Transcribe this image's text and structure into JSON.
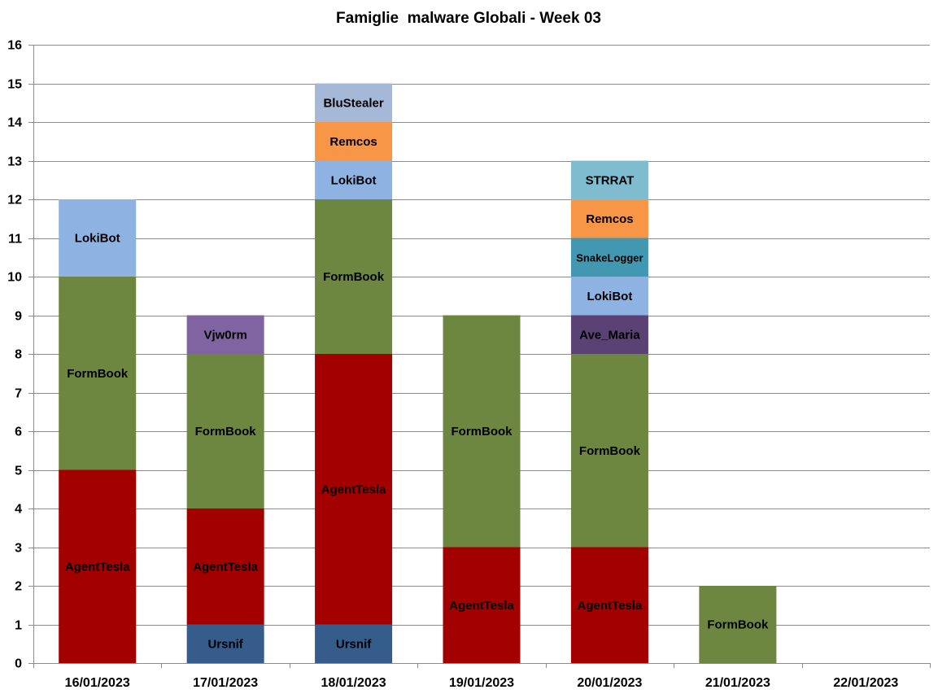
{
  "chart_data": {
    "type": "bar",
    "stacked": true,
    "title": "Famiglie  malware Globali - Week 03",
    "xlabel": "",
    "ylabel": "",
    "ylim": [
      0,
      16
    ],
    "yticks": [
      0,
      1,
      2,
      3,
      4,
      5,
      6,
      7,
      8,
      9,
      10,
      11,
      12,
      13,
      14,
      15,
      16
    ],
    "grid": true,
    "legend": "none",
    "categories": [
      "16/01/2023",
      "17/01/2023",
      "18/01/2023",
      "19/01/2023",
      "20/01/2023",
      "21/01/2023",
      "22/01/2023"
    ],
    "colors": {
      "Ursnif": "#355c8a",
      "AgentTesla": "#a30000",
      "FormBook": "#6e8740",
      "Vjw0rm": "#8064a2",
      "Ave_Maria": "#5a4274",
      "LokiBot": "#8eb3e2",
      "SnakeLogger": "#4198b0",
      "Remcos": "#f79646",
      "BluStealer": "#a6b8d8",
      "STRRAT": "#7fbccf"
    },
    "bars": [
      {
        "category": "16/01/2023",
        "segments": [
          {
            "name": "AgentTesla",
            "value": 5
          },
          {
            "name": "FormBook",
            "value": 5
          },
          {
            "name": "LokiBot",
            "value": 2
          }
        ]
      },
      {
        "category": "17/01/2023",
        "segments": [
          {
            "name": "Ursnif",
            "value": 1
          },
          {
            "name": "AgentTesla",
            "value": 3
          },
          {
            "name": "FormBook",
            "value": 4
          },
          {
            "name": "Vjw0rm",
            "value": 1
          }
        ]
      },
      {
        "category": "18/01/2023",
        "segments": [
          {
            "name": "Ursnif",
            "value": 1
          },
          {
            "name": "AgentTesla",
            "value": 7
          },
          {
            "name": "FormBook",
            "value": 4
          },
          {
            "name": "LokiBot",
            "value": 1
          },
          {
            "name": "Remcos",
            "value": 1
          },
          {
            "name": "BluStealer",
            "value": 1
          }
        ]
      },
      {
        "category": "19/01/2023",
        "segments": [
          {
            "name": "AgentTesla",
            "value": 3
          },
          {
            "name": "FormBook",
            "value": 6
          }
        ]
      },
      {
        "category": "20/01/2023",
        "segments": [
          {
            "name": "AgentTesla",
            "value": 3
          },
          {
            "name": "FormBook",
            "value": 5
          },
          {
            "name": "Ave_Maria",
            "value": 1
          },
          {
            "name": "LokiBot",
            "value": 1
          },
          {
            "name": "SnakeLogger",
            "value": 1
          },
          {
            "name": "Remcos",
            "value": 1
          },
          {
            "name": "STRRAT",
            "value": 1
          }
        ]
      },
      {
        "category": "21/01/2023",
        "segments": [
          {
            "name": "FormBook",
            "value": 2
          }
        ]
      },
      {
        "category": "22/01/2023",
        "segments": []
      }
    ]
  }
}
